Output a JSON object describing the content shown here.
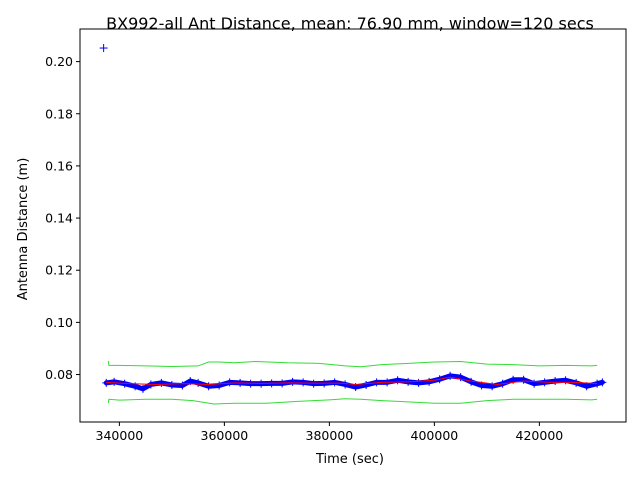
{
  "chart_data": {
    "type": "scatter",
    "title": "BX992-all Ant Distance, mean: 76.90 mm, window=120 secs",
    "xlabel": "Time (sec)",
    "ylabel": "Antenna Distance (m)",
    "xlim": [
      332500,
      436500
    ],
    "ylim": [
      0.0618,
      0.2125
    ],
    "grid": false,
    "legend": "none",
    "xticks": [
      {
        "value": 340000,
        "label": "340000"
      },
      {
        "value": 360000,
        "label": "360000"
      },
      {
        "value": 380000,
        "label": "380000"
      },
      {
        "value": 400000,
        "label": "400000"
      },
      {
        "value": 420000,
        "label": "420000"
      }
    ],
    "yticks": [
      {
        "value": 0.08,
        "label": "0.08"
      },
      {
        "value": 0.1,
        "label": "0.10"
      },
      {
        "value": 0.12,
        "label": "0.12"
      },
      {
        "value": 0.14,
        "label": "0.14"
      },
      {
        "value": 0.16,
        "label": "0.16"
      },
      {
        "value": 0.18,
        "label": "0.18"
      },
      {
        "value": 0.2,
        "label": "0.20"
      }
    ],
    "series": [
      {
        "role": "measurements",
        "style": "plus-markers",
        "color": "#0000ff",
        "x": [
          337000,
          337500,
          339000,
          341000,
          343000,
          344500,
          346000,
          348000,
          350000,
          352000,
          353500,
          355000,
          357000,
          359000,
          361000,
          363000,
          365000,
          367000,
          369000,
          371000,
          373000,
          375000,
          377000,
          379000,
          381000,
          383000,
          385000,
          387000,
          389000,
          391000,
          393000,
          395000,
          397000,
          399000,
          401000,
          403000,
          405000,
          407000,
          409000,
          411000,
          413000,
          415000,
          417000,
          419000,
          421000,
          423000,
          425000,
          427000,
          429000,
          431000,
          432000
        ],
        "y": [
          0.2052,
          0.0768,
          0.0772,
          0.0765,
          0.0755,
          0.0745,
          0.0762,
          0.0768,
          0.076,
          0.0758,
          0.0775,
          0.0768,
          0.0755,
          0.0758,
          0.077,
          0.0768,
          0.0765,
          0.0765,
          0.0766,
          0.0766,
          0.0772,
          0.077,
          0.0765,
          0.0766,
          0.077,
          0.0762,
          0.0752,
          0.076,
          0.077,
          0.077,
          0.0778,
          0.0772,
          0.0768,
          0.0772,
          0.0782,
          0.0795,
          0.079,
          0.0772,
          0.0758,
          0.0755,
          0.0765,
          0.078,
          0.078,
          0.0765,
          0.077,
          0.0775,
          0.0778,
          0.0768,
          0.0755,
          0.0765,
          0.077
        ]
      },
      {
        "role": "moving-mean",
        "style": "line",
        "color": "#ff0000",
        "x": [
          337500,
          342000,
          347000,
          352000,
          357000,
          362000,
          367000,
          372000,
          377000,
          382000,
          385000,
          390000,
          395000,
          400000,
          403000,
          407000,
          412000,
          417000,
          422000,
          427000,
          431000
        ],
        "y": [
          0.077,
          0.0765,
          0.0762,
          0.0765,
          0.0762,
          0.0768,
          0.0766,
          0.0768,
          0.0767,
          0.0767,
          0.0762,
          0.077,
          0.0772,
          0.0778,
          0.079,
          0.0775,
          0.0762,
          0.0775,
          0.077,
          0.077,
          0.0765
        ]
      },
      {
        "role": "upper-band",
        "style": "line",
        "color": "#33dd33",
        "x": [
          337900,
          338000,
          340000,
          345000,
          350000,
          355000,
          357000,
          359000,
          362000,
          366000,
          372000,
          378000,
          383000,
          386000,
          390000,
          395000,
          400000,
          405000,
          410000,
          415000,
          420000,
          425000,
          430000,
          431000
        ],
        "y": [
          0.0852,
          0.0835,
          0.0835,
          0.0833,
          0.0831,
          0.0833,
          0.0848,
          0.0848,
          0.0845,
          0.085,
          0.0845,
          0.0843,
          0.0833,
          0.083,
          0.0838,
          0.0843,
          0.0848,
          0.085,
          0.084,
          0.0838,
          0.0833,
          0.0835,
          0.0833,
          0.0835
        ]
      },
      {
        "role": "lower-band",
        "style": "line",
        "color": "#33dd33",
        "x": [
          337900,
          338000,
          340000,
          345000,
          350000,
          354000,
          358000,
          362000,
          368000,
          374000,
          380000,
          383000,
          386000,
          390000,
          395000,
          400000,
          405000,
          410000,
          415000,
          420000,
          425000,
          430000,
          431000
        ],
        "y": [
          0.069,
          0.0705,
          0.0702,
          0.0705,
          0.0705,
          0.07,
          0.0687,
          0.069,
          0.069,
          0.0697,
          0.0703,
          0.0707,
          0.0705,
          0.07,
          0.0695,
          0.069,
          0.069,
          0.07,
          0.0705,
          0.0705,
          0.0705,
          0.0703,
          0.0705
        ]
      }
    ]
  }
}
